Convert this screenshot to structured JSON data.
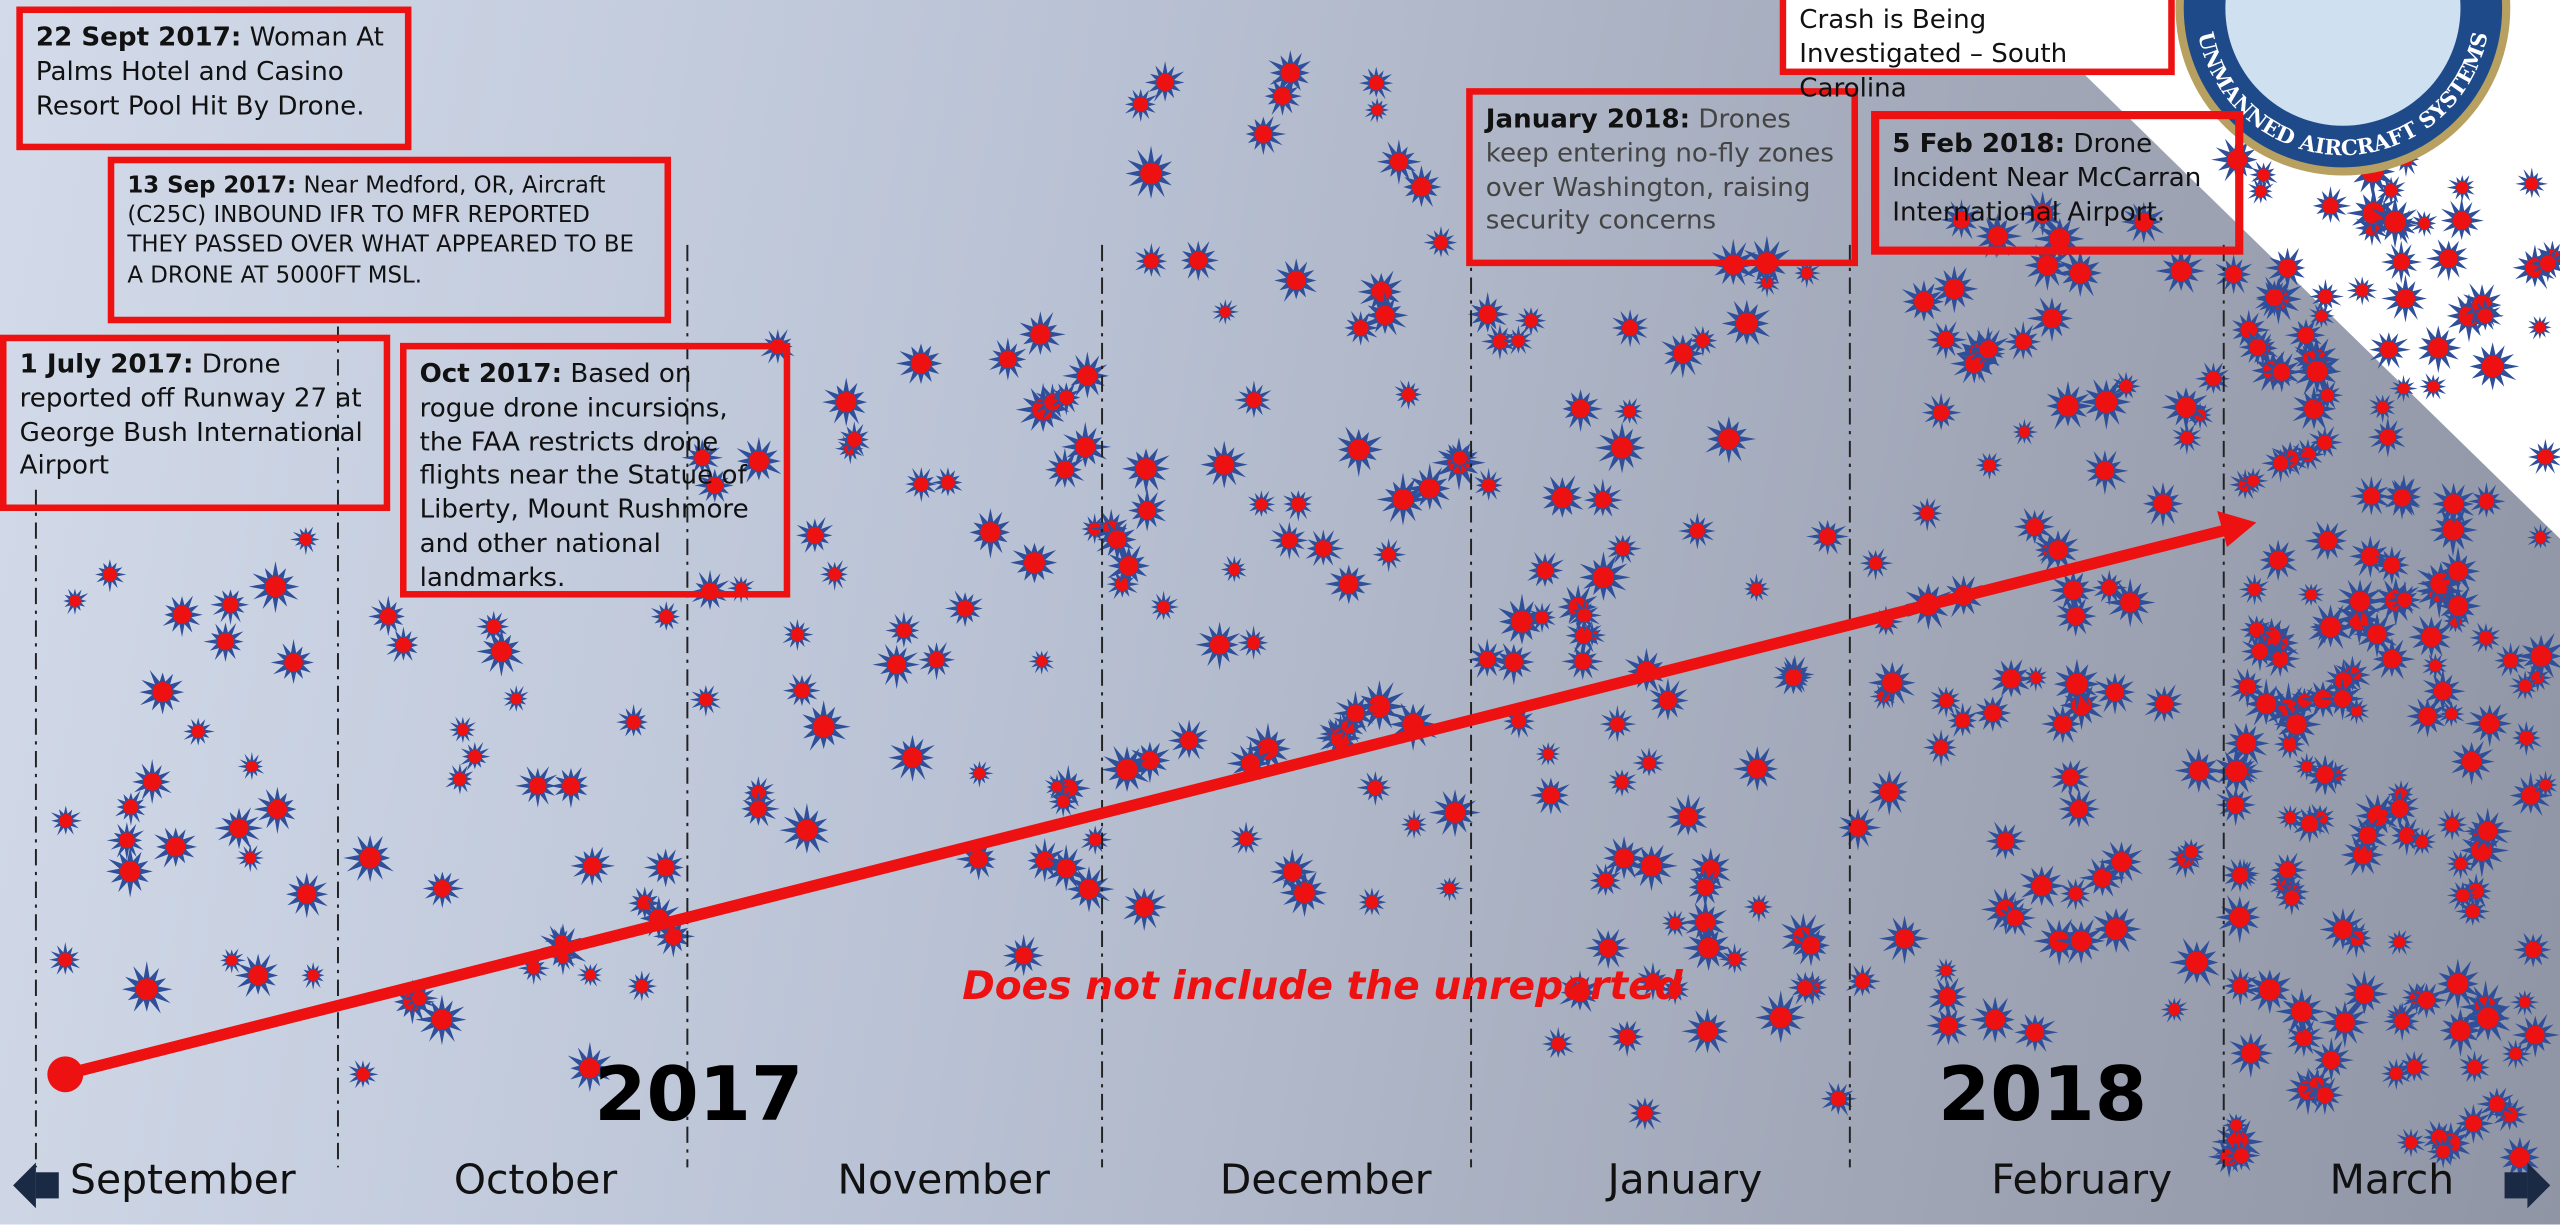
{
  "callouts": [
    {
      "date": "22 Sept 2017:",
      "text": "Woman At Palms Hotel and Casino Resort Pool Hit By Drone."
    },
    {
      "date": "13 Sep 2017:",
      "text": "Near Medford, OR, Aircraft (C25C) INBOUND IFR TO MFR REPORTED THEY PASSED OVER WHAT APPEARED TO BE A DRONE AT 5000FT MSL."
    },
    {
      "date": "1 July 2017:",
      "text": "Drone reported off Runway 27 at George Bush International Airport"
    },
    {
      "date": "Oct 2017:",
      "text": "Based on rogue drone incursions, the FAA restricts drone flights near the Statue of Liberty, Mount Rushmore and other national landmarks."
    },
    {
      "date": "January 2018:",
      "text": "Drones keep entering no-fly zones over Washington, raising security concerns"
    },
    {
      "date": "5 Feb 2018:",
      "text": "Drone Incident Near McCarran International Airport."
    },
    {
      "text": "Crash is Being Investigated – South Carolina"
    }
  ],
  "logo_text": "UNMANNED AIRCRAFT SYSTEMS",
  "note": "Does not include the unreported",
  "years": [
    "2017",
    "2018"
  ],
  "months": [
    "September",
    "October",
    "November",
    "December",
    "January",
    "February",
    "March"
  ]
}
